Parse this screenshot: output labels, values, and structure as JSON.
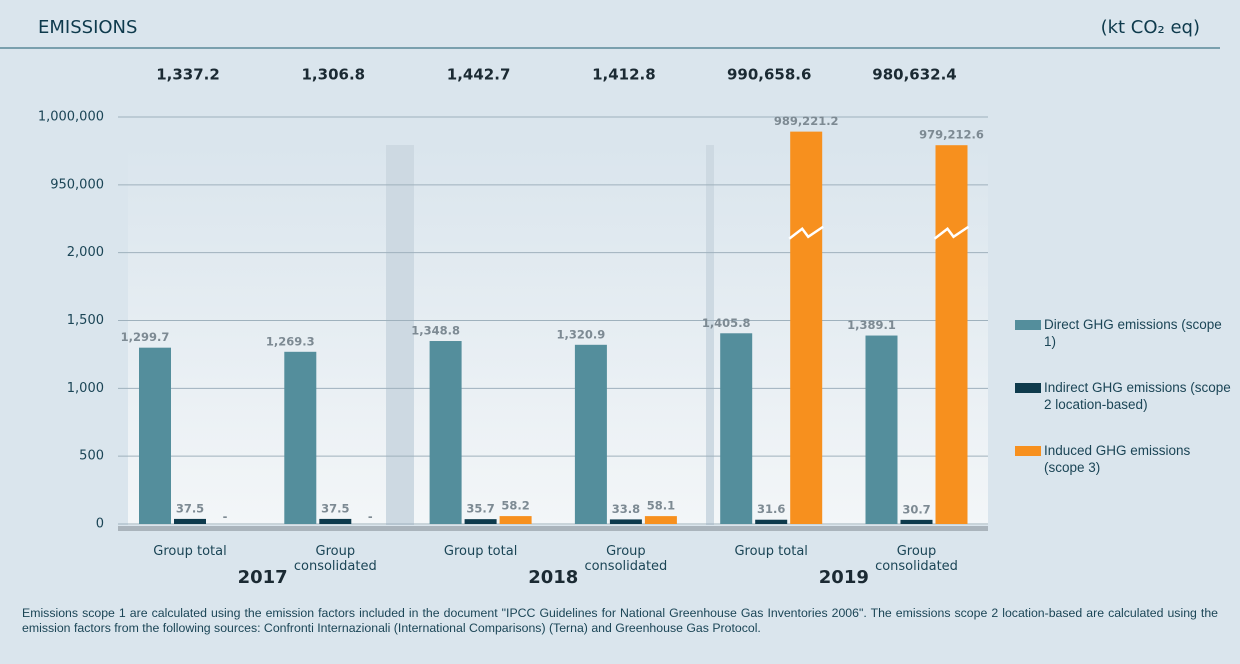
{
  "chart_data": {
    "type": "bar",
    "title": "EMISSIONS",
    "unit": "(kt CO₂ eq)",
    "categories": [
      "Group total",
      "Group consolidated",
      "Group total",
      "Group consolidated",
      "Group total",
      "Group consolidated"
    ],
    "years": [
      "2017",
      "2018",
      "2019"
    ],
    "totals": {
      "values": [
        1337.2,
        1306.8,
        1442.7,
        1412.8,
        990658.6,
        980632.4
      ],
      "value_labels": [
        "1,337.2",
        "1,306.8",
        "1,442.7",
        "1,412.8",
        "990,658.6",
        "980,632.4"
      ]
    },
    "series": [
      {
        "name": "Direct GHG emissions (scope 1)",
        "color": "#548e9c",
        "values": [
          1299.7,
          1269.3,
          1348.8,
          1320.9,
          1405.8,
          1389.1
        ],
        "value_labels": [
          "1,299.7",
          "1,269.3",
          "1,348.8",
          "1,320.9",
          "1,405.8",
          "1,389.1"
        ]
      },
      {
        "name": "Indirect GHG emissions (scope 2 location-based)",
        "color": "#0e3a4c",
        "values": [
          37.5,
          37.5,
          35.7,
          33.8,
          31.6,
          30.7
        ]
      },
      {
        "name": "Induced GHG emissions (scope 3)",
        "color": "#f7901e",
        "values": [
          null,
          null,
          58.2,
          58.1,
          989221.2,
          979212.6
        ],
        "value_labels": [
          "-",
          "-",
          "58.2",
          "58.1",
          "989,221.2",
          "979,212.6"
        ]
      }
    ],
    "ylim": [
      0,
      1000000
    ],
    "axis_break": [
      2000,
      950000
    ],
    "yticks": [
      0,
      500,
      {
        "value": 1000,
        "label": "1,000"
      },
      {
        "value": 1500,
        "label": "1,500"
      },
      {
        "value": 2000,
        "label": "2,000"
      },
      {
        "value": 950000,
        "label": "950,000"
      },
      {
        "value": 1000000,
        "label": "1,000,000"
      }
    ],
    "grid": true,
    "legend": "right",
    "footnote": "Emissions scope 1 are calculated using the emission factors included in the document \"IPCC Guidelines for National Greenhouse Gas Inventories 2006\". The emissions scope 2 location-based are calculated using the emission factors from the following sources: Confronti Internazionali (International Comparisons) (Terna) and Greenhouse Gas Protocol."
  }
}
